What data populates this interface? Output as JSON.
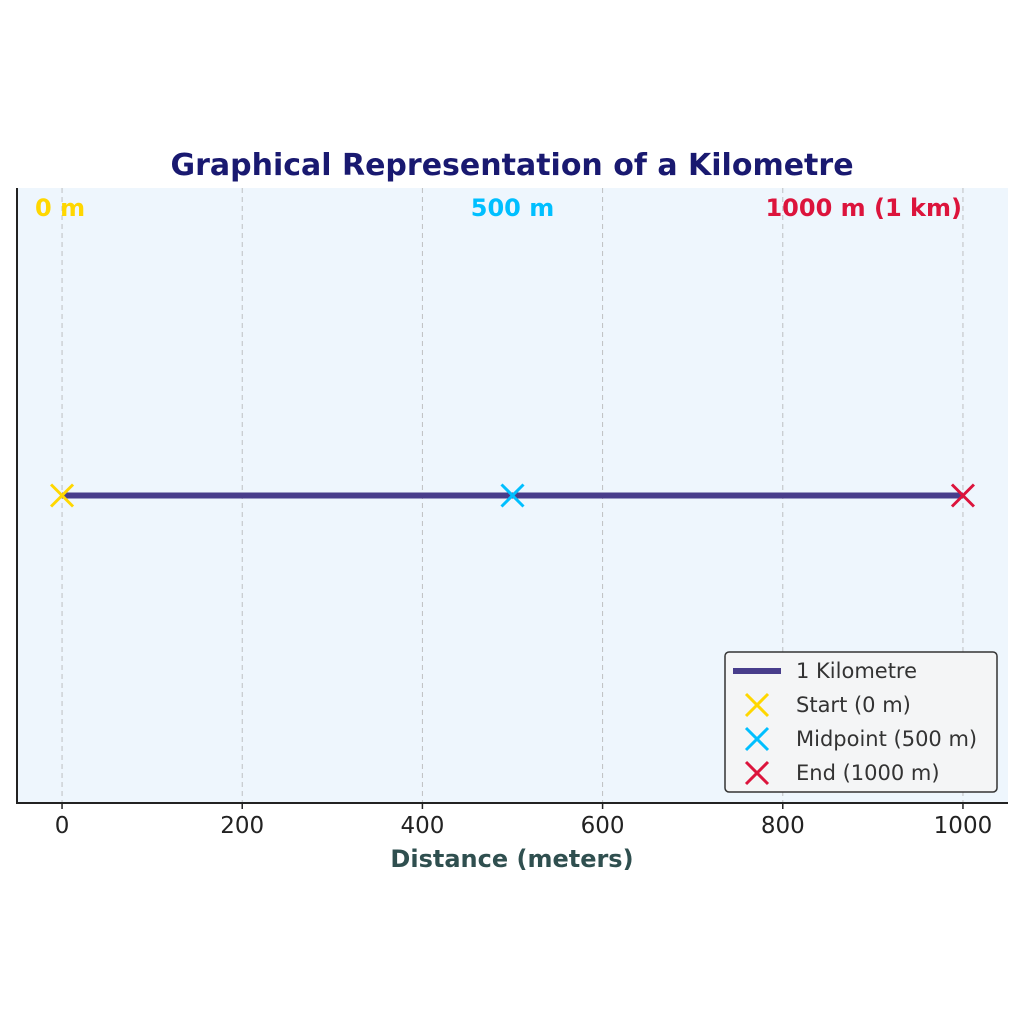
{
  "chart_data": {
    "type": "line",
    "title": "Graphical Representation of a Kilometre",
    "xlabel": "Distance (meters)",
    "ylabel": "",
    "xlim": [
      -50,
      1050
    ],
    "ylim": [
      -1,
      1
    ],
    "xticks": [
      0,
      200,
      400,
      600,
      800,
      1000
    ],
    "grid": "vertical dashed",
    "legend_position": "lower-right",
    "series": [
      {
        "name": "1 Kilometre",
        "kind": "line",
        "x": [
          0,
          1000
        ],
        "y": [
          0,
          0
        ],
        "color": "#483D8B"
      },
      {
        "name": "Start (0 m)",
        "kind": "marker",
        "x": [
          0
        ],
        "y": [
          0
        ],
        "color": "#FFD700"
      },
      {
        "name": "Midpoint (500 m)",
        "kind": "marker",
        "x": [
          500
        ],
        "y": [
          0
        ],
        "color": "#00BFFF"
      },
      {
        "name": "End (1000 m)",
        "kind": "marker",
        "x": [
          1000
        ],
        "y": [
          0
        ],
        "color": "#DC143C"
      }
    ],
    "annotations": [
      {
        "text": "0 m",
        "x": 0,
        "color": "#FFD700"
      },
      {
        "text": "500 m",
        "x": 500,
        "color": "#00BFFF"
      },
      {
        "text": "1000 m (1 km)",
        "x": 1000,
        "color": "#DC143C"
      }
    ],
    "colors": {
      "title": "#191970",
      "xlabel": "#2F4F4F",
      "plot_background": "#EEF6FD",
      "grid": "#A9A9A9"
    }
  }
}
